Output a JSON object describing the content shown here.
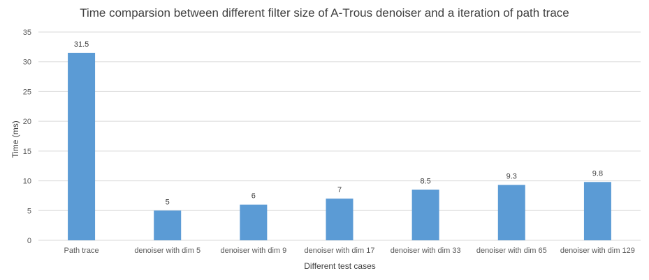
{
  "chart_data": {
    "type": "bar",
    "title": "Time comparsion between different filter size of A-Trous denoiser and a iteration of path trace",
    "xlabel": "Different test cases",
    "ylabel": "Time (ms)",
    "categories": [
      "Path trace",
      "denoiser with dim 5",
      "denoiser with dim 9",
      "denoiser with dim 17",
      "denoiser with dim 33",
      "denoiser with dim 65",
      "denoiser with dim 129"
    ],
    "values": [
      31.5,
      5,
      6,
      7,
      8.5,
      9.3,
      9.8
    ],
    "ylim": [
      0,
      35
    ],
    "yticks": [
      0,
      5,
      10,
      15,
      20,
      25,
      30,
      35
    ],
    "grid": true,
    "bar_color": "#5b9bd5",
    "grid_color": "#d9d9d9"
  }
}
